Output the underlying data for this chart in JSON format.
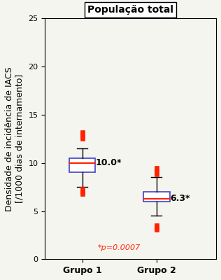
{
  "title": "População total",
  "ylabel_line1": "Densidade de incidência de IACS",
  "ylabel_line2": "[/1000 dias de internamento]",
  "xlabel1": "Grupo 1",
  "xlabel2": "Grupo 2",
  "ylim": [
    0,
    25
  ],
  "yticks": [
    0,
    5,
    10,
    15,
    20,
    25
  ],
  "group1": {
    "median": 10.0,
    "q1": 9.0,
    "q3": 10.5,
    "whisker_low": 7.5,
    "whisker_high": 11.5,
    "outliers": [
      13.2,
      13.0,
      12.8,
      12.5,
      7.3,
      7.0,
      6.8
    ]
  },
  "group2": {
    "median": 6.3,
    "q1": 6.0,
    "q3": 7.0,
    "whisker_low": 4.5,
    "whisker_high": 8.5,
    "outliers": [
      9.5,
      9.2,
      9.0,
      8.8,
      3.5,
      3.3,
      3.1
    ]
  },
  "label1": "10.0*",
  "label2": "6.3*",
  "pvalue_text": "*p=0.0007",
  "box_color": "#4040cc",
  "median_color": "#ff2200",
  "outlier_color": "#ff2200",
  "whisker_color": "#000000",
  "pvalue_color": "#ff2200",
  "label_color": "#000000",
  "background_color": "#f5f5f0",
  "title_fontsize": 10,
  "label_fontsize": 9,
  "tick_fontsize": 8,
  "annotation_fontsize": 9
}
